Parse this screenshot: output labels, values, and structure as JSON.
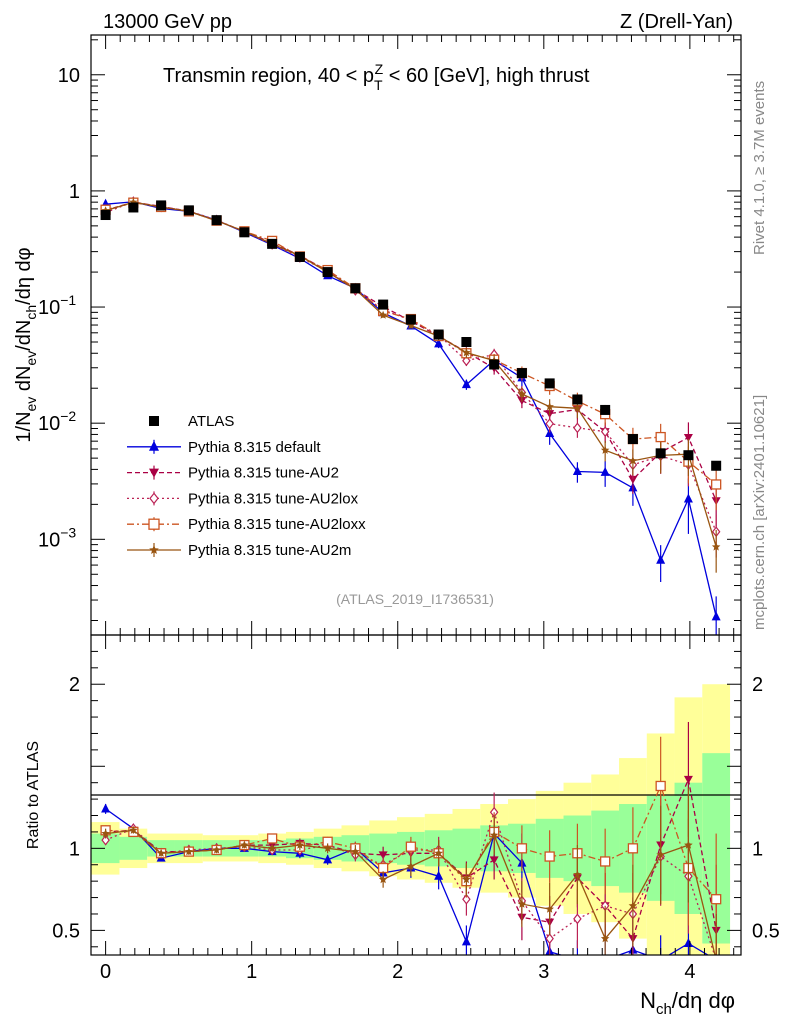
{
  "header": {
    "left": "13000 GeV pp",
    "right": "Z (Drell-Yan)"
  },
  "side_labels": {
    "rivet": "Rivet 4.1.0, ≥ 3.7M events",
    "mcplots": "mcplots.cern.ch [arXiv:2401.10621]"
  },
  "chart_data": {
    "type": "line",
    "title": "Transmin region, 40 < p_T^Z < 60 [GeV], high thrust",
    "watermark": "(ATLAS_2019_I1736531)",
    "xlabel": "N_ch/dη dφ",
    "ylabel": "1/N_ev dN_ev/dN_ch/dη dφ",
    "ratio_ylabel": "Ratio to ATLAS",
    "xlim": [
      -0.1,
      4.35
    ],
    "ylim_log": [
      0.00015,
      22
    ],
    "ratio_ylim": [
      0.35,
      2.3
    ],
    "x_ticks": [
      "0",
      "1",
      "2",
      "3",
      "4"
    ],
    "y_ticks": [
      {
        "value": 10,
        "base": "10",
        "exp": ""
      },
      {
        "value": 1,
        "base": "1",
        "exp": ""
      },
      {
        "value": 0.1,
        "base": "10",
        "exp": "−1"
      },
      {
        "value": 0.01,
        "base": "10",
        "exp": "−2"
      },
      {
        "value": 0.001,
        "base": "10",
        "exp": "−3"
      }
    ],
    "ratio_y_ticks": [
      "0.5",
      "1",
      "2"
    ],
    "x": [
      0.0,
      0.19,
      0.38,
      0.57,
      0.76,
      0.95,
      1.14,
      1.33,
      1.52,
      1.71,
      1.9,
      2.09,
      2.28,
      2.47,
      2.66,
      2.85,
      3.04,
      3.23,
      3.42,
      3.61,
      3.8,
      3.99,
      4.18
    ],
    "data": {
      "name": "ATLAS",
      "values": [
        0.62,
        0.72,
        0.75,
        0.68,
        0.56,
        0.44,
        0.35,
        0.27,
        0.2,
        0.145,
        0.105,
        0.078,
        0.058,
        0.05,
        0.032,
        0.027,
        0.022,
        0.016,
        0.013,
        0.0073,
        0.0055,
        0.0053,
        0.0043
      ]
    },
    "ratio_bands": {
      "edges": [
        -0.1,
        0.095,
        0.285,
        0.475,
        0.665,
        0.855,
        1.045,
        1.235,
        1.425,
        1.615,
        1.805,
        1.995,
        2.185,
        2.375,
        2.565,
        2.755,
        2.945,
        3.135,
        3.325,
        3.515,
        3.705,
        3.895,
        4.085,
        4.275
      ],
      "inner": [
        0.09,
        0.07,
        0.05,
        0.05,
        0.05,
        0.05,
        0.05,
        0.06,
        0.07,
        0.08,
        0.09,
        0.1,
        0.11,
        0.12,
        0.14,
        0.15,
        0.18,
        0.2,
        0.23,
        0.27,
        0.32,
        0.4,
        0.58
      ],
      "outer": [
        0.16,
        0.12,
        0.09,
        0.09,
        0.08,
        0.08,
        0.09,
        0.1,
        0.12,
        0.14,
        0.17,
        0.19,
        0.21,
        0.24,
        0.27,
        0.3,
        0.35,
        0.4,
        0.45,
        0.55,
        0.7,
        0.92,
        1.0
      ],
      "inner_color": "#99ff99",
      "outer_color": "#ffff99"
    },
    "series": [
      {
        "name": "Pythia 8.315 default",
        "color": "#0000dd",
        "marker": "triangle-up",
        "dash": "",
        "ratio": [
          1.24,
          1.12,
          0.94,
          0.98,
          1.0,
          1.0,
          0.98,
          0.97,
          0.93,
          1.0,
          0.85,
          0.88,
          0.83,
          0.43,
          1.09,
          0.91,
          0.37,
          0.24,
          0.29,
          0.38,
          0.12,
          0.42,
          0.05
        ],
        "err": [
          0.03,
          0.02,
          0.02,
          0.02,
          0.02,
          0.02,
          0.02,
          0.03,
          0.03,
          0.04,
          0.05,
          0.06,
          0.08,
          0.1,
          0.15,
          0.18,
          0.2,
          0.2,
          0.25,
          0.3,
          0.35,
          0.5,
          0.5
        ]
      },
      {
        "name": "Pythia 8.315 tune-AU2",
        "color": "#aa0044",
        "marker": "triangle-down",
        "dash": "5,3",
        "ratio": [
          1.1,
          1.11,
          0.98,
          0.98,
          0.99,
          1.02,
          1.02,
          1.03,
          1.02,
          0.97,
          0.96,
          0.97,
          0.97,
          0.82,
          0.93,
          0.58,
          0.55,
          0.82,
          0.65,
          0.45,
          1.02,
          1.42,
          0.5
        ],
        "err": [
          0.03,
          0.02,
          0.02,
          0.02,
          0.02,
          0.02,
          0.02,
          0.03,
          0.03,
          0.04,
          0.05,
          0.06,
          0.08,
          0.1,
          0.12,
          0.14,
          0.16,
          0.18,
          0.2,
          0.25,
          0.3,
          0.35,
          0.4
        ]
      },
      {
        "name": "Pythia 8.315 tune-AU2lox",
        "color": "#bb2255",
        "marker": "diamond",
        "dash": "2,3",
        "ratio": [
          1.05,
          1.12,
          0.97,
          0.99,
          1.0,
          1.01,
          0.99,
          0.99,
          1.02,
          0.96,
          0.9,
          0.99,
          0.99,
          0.69,
          1.22,
          0.68,
          0.45,
          0.57,
          0.65,
          0.6,
          0.95,
          0.83,
          0.27
        ],
        "err": [
          0.03,
          0.02,
          0.02,
          0.02,
          0.02,
          0.02,
          0.02,
          0.03,
          0.03,
          0.04,
          0.05,
          0.06,
          0.08,
          0.1,
          0.12,
          0.14,
          0.16,
          0.18,
          0.2,
          0.25,
          0.3,
          0.35,
          0.4
        ]
      },
      {
        "name": "Pythia 8.315 tune-AU2loxx",
        "color": "#cc5522",
        "marker": "square-open",
        "dash": "7,3,2,3",
        "ratio": [
          1.11,
          1.1,
          0.97,
          0.98,
          0.99,
          1.02,
          1.06,
          1.01,
          1.04,
          1.0,
          0.88,
          1.01,
          0.97,
          0.8,
          1.1,
          1.0,
          0.95,
          0.97,
          0.92,
          1.0,
          1.38,
          0.88,
          0.69
        ],
        "err": [
          0.03,
          0.02,
          0.02,
          0.02,
          0.02,
          0.02,
          0.02,
          0.03,
          0.03,
          0.04,
          0.05,
          0.06,
          0.08,
          0.1,
          0.12,
          0.14,
          0.16,
          0.18,
          0.2,
          0.25,
          0.3,
          0.35,
          0.4
        ]
      },
      {
        "name": "Pythia 8.315 tune-AU2m",
        "color": "#995511",
        "marker": "star",
        "dash": "",
        "ratio": [
          1.09,
          1.11,
          0.97,
          0.98,
          0.99,
          1.02,
          1.0,
          1.02,
          1.0,
          0.98,
          0.81,
          0.89,
          0.97,
          0.81,
          1.08,
          0.66,
          0.63,
          0.84,
          0.45,
          0.65,
          0.96,
          1.02,
          0.2
        ],
        "err": [
          0.03,
          0.02,
          0.02,
          0.02,
          0.02,
          0.02,
          0.02,
          0.03,
          0.03,
          0.04,
          0.05,
          0.06,
          0.08,
          0.1,
          0.12,
          0.14,
          0.16,
          0.18,
          0.2,
          0.25,
          0.3,
          0.35,
          0.4
        ]
      }
    ]
  }
}
